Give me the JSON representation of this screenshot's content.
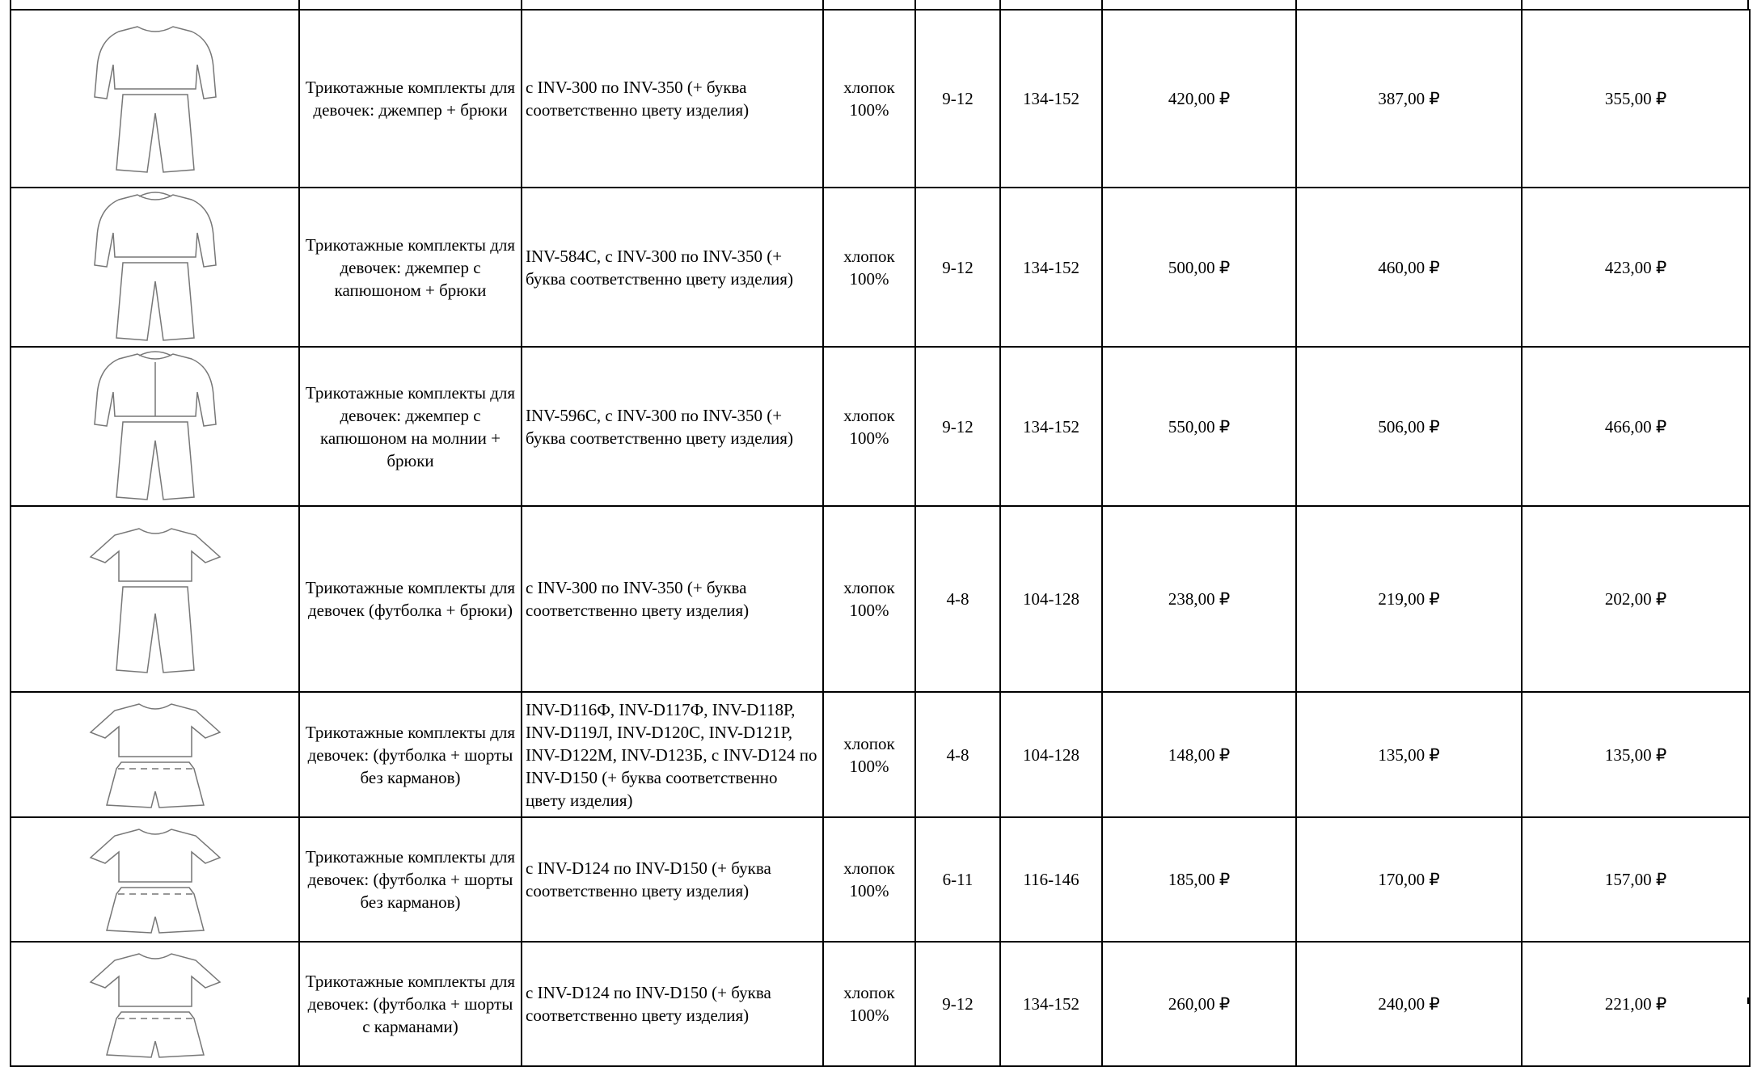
{
  "rows": [
    {
      "image_icon": "sweatshirt-pants-sketch",
      "name": "Трикотажные комплекты для девочек: джемпер + брюки",
      "article": "с INV-300 по INV-350 (+ буква соответственно цвету изделия)",
      "material": "хлопок 100%",
      "age": "9-12",
      "size": "134-152",
      "price1": "420,00 ₽",
      "price2": "387,00 ₽",
      "price3": "355,00 ₽"
    },
    {
      "image_icon": "hoodie-pants-sketch",
      "name": "Трикотажные комплекты для девочек: джемпер с капюшоном + брюки",
      "article": "INV-584С, с INV-300 по INV-350 (+ буква соответственно цвету изделия)",
      "material": "хлопок 100%",
      "age": "9-12",
      "size": "134-152",
      "price1": "500,00 ₽",
      "price2": "460,00 ₽",
      "price3": "423,00 ₽"
    },
    {
      "image_icon": "zip-hoodie-pants-sketch",
      "name": "Трикотажные комплекты для девочек: джемпер с капюшоном на молнии + брюки",
      "article": "INV-596С, с INV-300 по INV-350 (+ буква соответственно цвету изделия)",
      "material": "хлопок 100%",
      "age": "9-12",
      "size": "134-152",
      "price1": "550,00 ₽",
      "price2": "506,00 ₽",
      "price3": "466,00 ₽"
    },
    {
      "image_icon": "tshirt-pants-sketch",
      "name": "Трикотажные комплекты для девочек (футболка + брюки)",
      "article": "с INV-300 по INV-350 (+ буква соответственно цвету изделия)",
      "material": "хлопок 100%",
      "age": "4-8",
      "size": "104-128",
      "price1": "238,00 ₽",
      "price2": "219,00 ₽",
      "price3": "202,00 ₽"
    },
    {
      "image_icon": "tshirt-shorts-sketch",
      "name": "Трикотажные комплекты для девочек: (футболка + шорты без карманов)",
      "article": "INV-D116Ф, INV-D117Ф, INV-D118Р, INV-D119Л, INV-D120С, INV-D121Р, INV-D122М, INV-D123Б, с INV-D124 по INV-D150 (+ буква соответственно цвету изделия)",
      "material": "хлопок 100%",
      "age": "4-8",
      "size": "104-128",
      "price1": "148,00 ₽",
      "price2": "135,00 ₽",
      "price3": "135,00 ₽"
    },
    {
      "image_icon": "tshirt-shorts-sketch",
      "name": "Трикотажные комплекты для девочек: (футболка + шорты без карманов)",
      "article": "с INV-D124 по INV-D150 (+ буква соответственно цвету изделия)",
      "material": "хлопок 100%",
      "age": "6-11",
      "size": "116-146",
      "price1": "185,00 ₽",
      "price2": "170,00 ₽",
      "price3": "157,00 ₽"
    },
    {
      "image_icon": "tshirt-shorts-sketch",
      "name": "Трикотажные комплекты для девочек: (футболка + шорты с карманами)",
      "article": "с INV-D124 по INV-D150 (+ буква соответственно цвету изделия)",
      "material": "хлопок 100%",
      "age": "9-12",
      "size": "134-152",
      "price1": "260,00 ₽",
      "price2": "240,00 ₽",
      "price3": "221,00 ₽"
    }
  ]
}
